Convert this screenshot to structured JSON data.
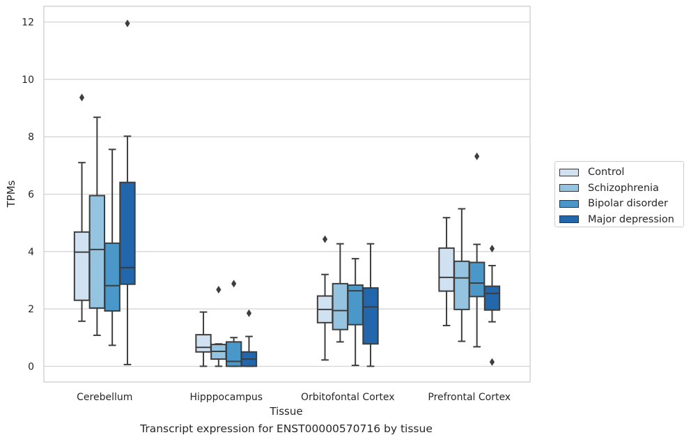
{
  "caption": "Transcript expression for ENST00000570716 by tissue",
  "legend": {
    "items": [
      {
        "label": "Control",
        "color": "#d0e1f2"
      },
      {
        "label": "Schizophrenia",
        "color": "#94c4df"
      },
      {
        "label": "Bipolar disorder",
        "color": "#4a98c9"
      },
      {
        "label": "Major depression",
        "color": "#2266ac"
      }
    ]
  },
  "chart_data": {
    "type": "box",
    "xlabel": "Tissue",
    "ylabel": "TPMs",
    "ylim": [
      -0.55,
      12.55
    ],
    "yticks": [
      0,
      2,
      4,
      6,
      8,
      10,
      12
    ],
    "categories": [
      "Cerebellum",
      "Hipppocampus",
      "Orbitofontal Cortex",
      "Prefrontal Cortex"
    ],
    "grid": "horizontal",
    "legend_position": "right",
    "series": [
      {
        "name": "Control",
        "color": "#d0e1f2",
        "boxes": [
          {
            "whislo": 1.57,
            "q1": 2.3,
            "med": 3.98,
            "q3": 4.68,
            "whishi": 7.1,
            "fliers": [
              9.37
            ]
          },
          {
            "whislo": 0.0,
            "q1": 0.5,
            "med": 0.66,
            "q3": 1.1,
            "whishi": 1.89,
            "fliers": []
          },
          {
            "whislo": 0.22,
            "q1": 1.52,
            "med": 1.98,
            "q3": 2.45,
            "whishi": 3.2,
            "fliers": [
              4.43
            ]
          },
          {
            "whislo": 1.42,
            "q1": 2.62,
            "med": 3.1,
            "q3": 4.12,
            "whishi": 5.18,
            "fliers": []
          }
        ]
      },
      {
        "name": "Schizophrenia",
        "color": "#94c4df",
        "boxes": [
          {
            "whislo": 1.08,
            "q1": 2.03,
            "med": 4.07,
            "q3": 5.95,
            "whishi": 8.68,
            "fliers": []
          },
          {
            "whislo": 0.0,
            "q1": 0.25,
            "med": 0.52,
            "q3": 0.76,
            "whishi": 0.78,
            "fliers": [
              2.67
            ]
          },
          {
            "whislo": 0.85,
            "q1": 1.28,
            "med": 1.94,
            "q3": 2.88,
            "whishi": 4.27,
            "fliers": []
          },
          {
            "whislo": 0.87,
            "q1": 1.98,
            "med": 3.08,
            "q3": 3.66,
            "whishi": 5.49,
            "fliers": []
          }
        ]
      },
      {
        "name": "Bipolar disorder",
        "color": "#4a98c9",
        "boxes": [
          {
            "whislo": 0.73,
            "q1": 1.93,
            "med": 2.81,
            "q3": 4.29,
            "whishi": 7.56,
            "fliers": []
          },
          {
            "whislo": 0.0,
            "q1": 0.0,
            "med": 0.17,
            "q3": 0.85,
            "whishi": 1.0,
            "fliers": [
              2.88
            ]
          },
          {
            "whislo": 0.03,
            "q1": 1.45,
            "med": 2.63,
            "q3": 2.83,
            "whishi": 3.75,
            "fliers": []
          },
          {
            "whislo": 0.68,
            "q1": 2.43,
            "med": 2.9,
            "q3": 3.62,
            "whishi": 4.25,
            "fliers": [
              7.32
            ]
          }
        ]
      },
      {
        "name": "Major depression",
        "color": "#2266ac",
        "boxes": [
          {
            "whislo": 0.06,
            "q1": 2.86,
            "med": 3.44,
            "q3": 6.41,
            "whishi": 8.02,
            "fliers": [
              11.95
            ]
          },
          {
            "whislo": 0.0,
            "q1": 0.0,
            "med": 0.25,
            "q3": 0.5,
            "whishi": 1.04,
            "fliers": [
              1.85
            ]
          },
          {
            "whislo": 0.0,
            "q1": 0.78,
            "med": 2.07,
            "q3": 2.73,
            "whishi": 4.27,
            "fliers": []
          },
          {
            "whislo": 1.55,
            "q1": 1.96,
            "med": 2.54,
            "q3": 2.79,
            "whishi": 3.51,
            "fliers": [
              4.1,
              0.15
            ]
          }
        ]
      }
    ]
  }
}
